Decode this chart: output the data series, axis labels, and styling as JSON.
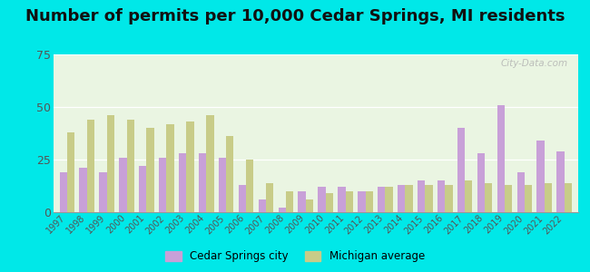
{
  "title": "Number of permits per 10,000 Cedar Springs, MI residents",
  "years": [
    1997,
    1998,
    1999,
    2000,
    2001,
    2002,
    2003,
    2004,
    2005,
    2006,
    2007,
    2008,
    2009,
    2010,
    2011,
    2012,
    2013,
    2014,
    2015,
    2016,
    2017,
    2018,
    2019,
    2020,
    2021,
    2022
  ],
  "cedar_springs": [
    19,
    21,
    19,
    26,
    22,
    26,
    28,
    28,
    26,
    13,
    6,
    2,
    10,
    12,
    12,
    10,
    12,
    13,
    15,
    15,
    40,
    28,
    51,
    19,
    34,
    29
  ],
  "michigan_avg": [
    38,
    44,
    46,
    44,
    40,
    42,
    43,
    46,
    36,
    25,
    14,
    10,
    6,
    9,
    10,
    10,
    12,
    13,
    13,
    13,
    15,
    14,
    13,
    13,
    14,
    14
  ],
  "cedar_color": "#c8a0d8",
  "michigan_color": "#c8cc88",
  "background_color": "#eaf5e2",
  "outer_bg": "#00e8e8",
  "ylim": [
    0,
    75
  ],
  "yticks": [
    0,
    25,
    50,
    75
  ],
  "legend_cedar": "Cedar Springs city",
  "legend_michigan": "Michigan average",
  "title_fontsize": 13,
  "bar_width": 0.38
}
